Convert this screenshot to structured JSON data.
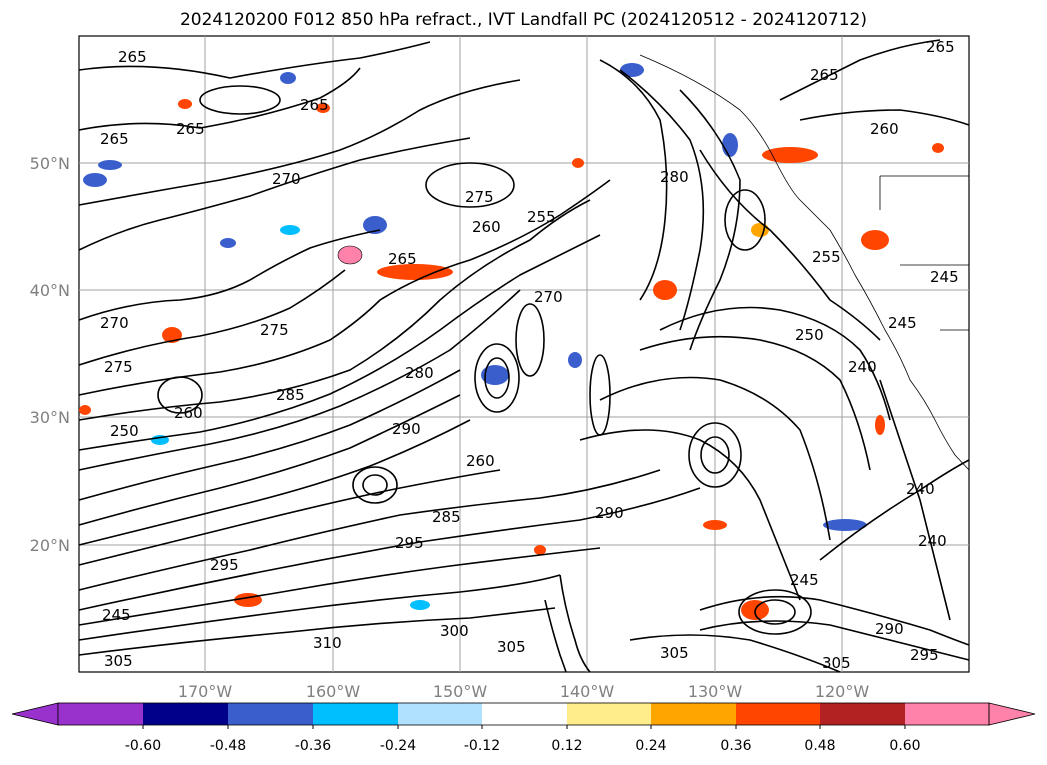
{
  "title": "2024120200 F012 850 hPa refract., IVT Landfall PC (2024120512 - 2024120712)",
  "map": {
    "lat_labels": [
      "50°N",
      "40°N",
      "30°N",
      "20°N"
    ],
    "lon_labels": [
      "170°W",
      "160°W",
      "150°W",
      "140°W",
      "130°W",
      "120°W"
    ],
    "gridline_color": "#808080"
  },
  "contour_labels": [
    "265",
    "265",
    "265",
    "265",
    "265",
    "270",
    "270",
    "275",
    "260",
    "255",
    "265",
    "280",
    "275",
    "275",
    "270",
    "260",
    "250",
    "280",
    "285",
    "290",
    "260",
    "285",
    "290",
    "295",
    "295",
    "310",
    "300",
    "305",
    "305",
    "245",
    "305",
    "305",
    "295",
    "290",
    "240",
    "240",
    "245",
    "255",
    "250",
    "245",
    "240",
    "245",
    "260",
    "265"
  ],
  "colorbar": {
    "ticks": [
      "-0.60",
      "-0.48",
      "-0.36",
      "-0.24",
      "-0.12",
      "0.12",
      "0.24",
      "0.36",
      "0.48",
      "0.60"
    ],
    "colors": [
      "#9932cc",
      "#00008b",
      "#3a5fcd",
      "#00bfff",
      "#b0e2ff",
      "#ffffff",
      "#ffec8b",
      "#ffa500",
      "#ff4500",
      "#b22222",
      "#ff82ab"
    ]
  }
}
